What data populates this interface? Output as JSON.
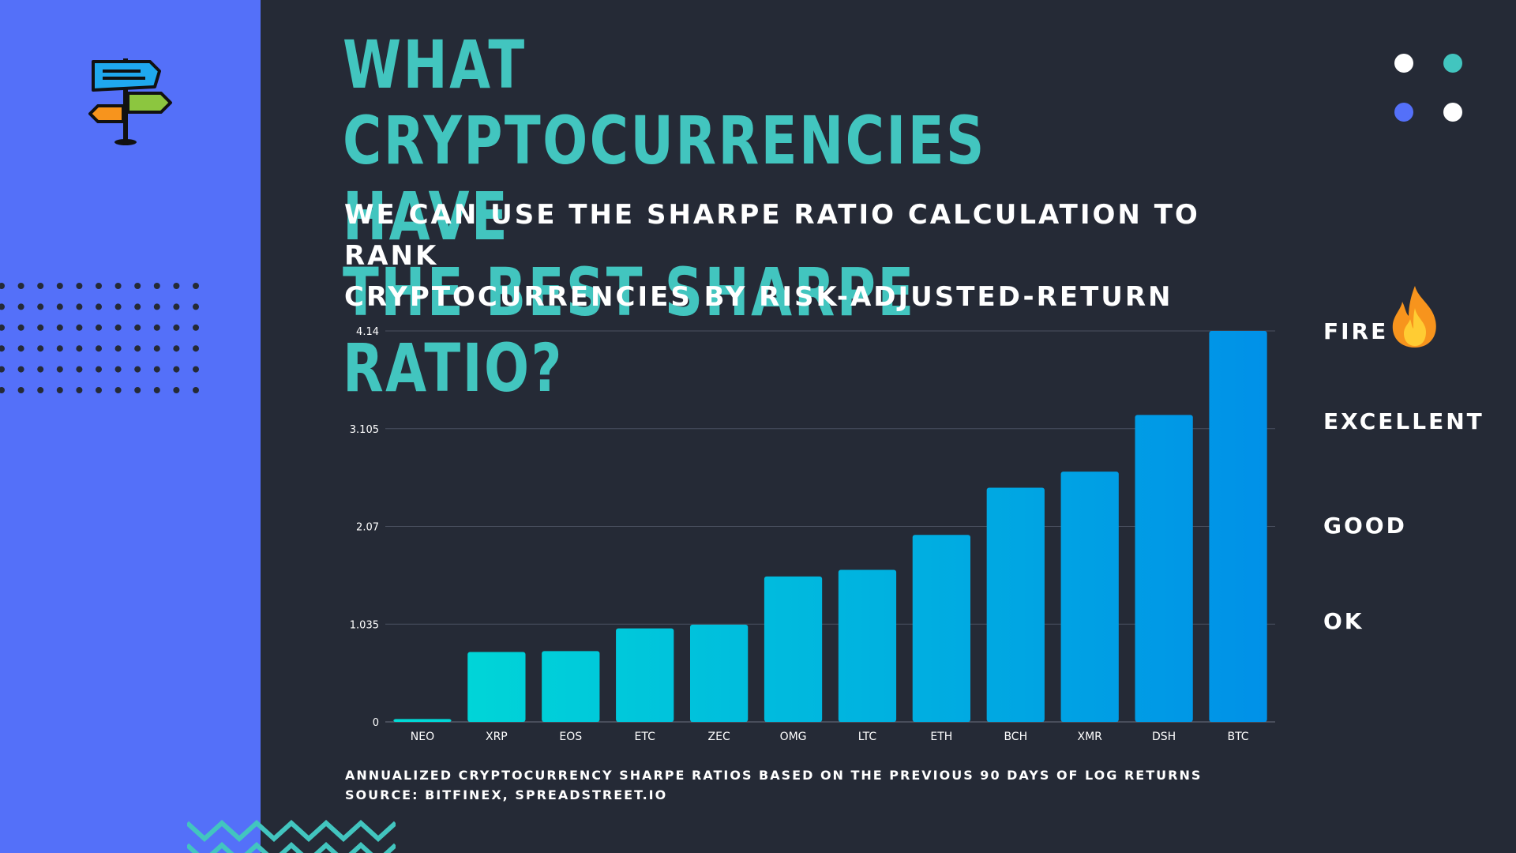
{
  "header": {
    "title_line1": "WHAT CRYPTOCURRENCIES HAVE",
    "title_line2": "THE BEST SHARPE RATIO?",
    "subtitle_line1": "WE CAN USE THE SHARPE RATIO CALCULATION TO RANK",
    "subtitle_line2": "CRYPTOCURRENCIES BY RISK-ADJUSTED-RETURN"
  },
  "ratings": {
    "fire": "FIRE",
    "excellent": "EXCELLENT",
    "good": "GOOD",
    "ok": "OK"
  },
  "footer": {
    "note": "ANNUALIZED CRYPTOCURRENCY SHARPE RATIOS BASED ON THE PREVIOUS 90 DAYS OF LOG RETURNS",
    "source": "SOURCE: BITFINEX, SPREADSTREET.IO"
  },
  "icons": {
    "signpost": "signpost-icon",
    "fire": "fire-icon"
  },
  "colors": {
    "background": "#252a36",
    "left_panel": "#5470f9",
    "title": "#42c5bf",
    "text": "#ffffff",
    "bar_start": "#00dcd6",
    "bar_end": "#0090e8",
    "grid": "#4a5060",
    "axis_text": "#ffffff"
  },
  "chart_data": {
    "type": "bar",
    "categories": [
      "NEO",
      "XRP",
      "EOS",
      "ETC",
      "ZEC",
      "OMG",
      "LTC",
      "ETH",
      "BCH",
      "XMR",
      "DSH",
      "BTC"
    ],
    "values": [
      0.03,
      0.74,
      0.75,
      0.99,
      1.03,
      1.54,
      1.61,
      1.98,
      2.48,
      2.65,
      3.25,
      4.14
    ],
    "yticks": [
      "0",
      "1.035",
      "2.07",
      "3.105",
      "4.14"
    ],
    "ylim": [
      0,
      4.14
    ],
    "grid": true,
    "legend": "none",
    "title": "",
    "xlabel": "",
    "ylabel": ""
  }
}
